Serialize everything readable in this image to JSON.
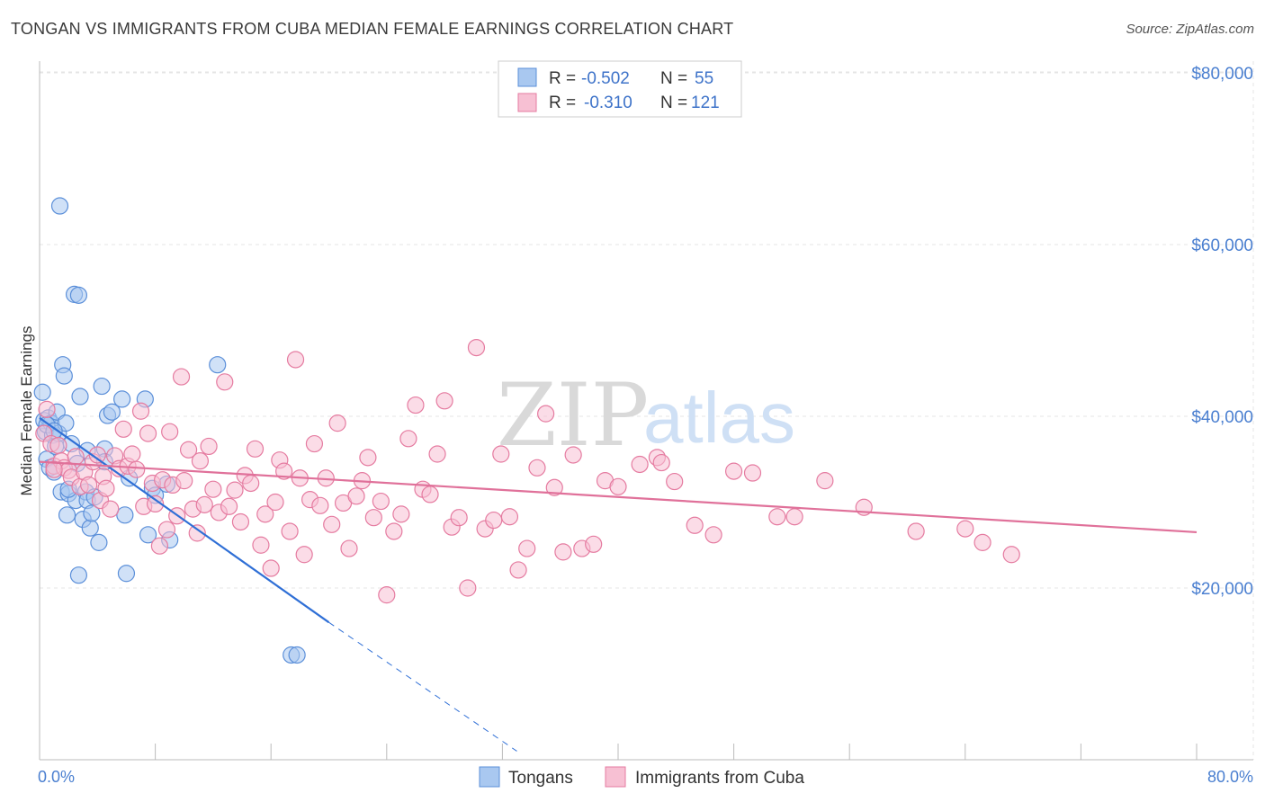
{
  "title": "TONGAN VS IMMIGRANTS FROM CUBA MEDIAN FEMALE EARNINGS CORRELATION CHART",
  "source": "Source: ZipAtlas.com",
  "watermark": {
    "zip": "ZIP",
    "atlas": "atlas"
  },
  "chart_data": {
    "type": "scatter",
    "title": "TONGAN VS IMMIGRANTS FROM CUBA MEDIAN FEMALE EARNINGS CORRELATION CHART",
    "xlabel": "",
    "ylabel": "Median Female Earnings",
    "xlim": [
      0,
      80
    ],
    "ylim": [
      0,
      82000
    ],
    "x_tick_labels": [
      "0.0%",
      "80.0%"
    ],
    "y_ticks": [
      20000,
      40000,
      60000,
      80000
    ],
    "y_tick_labels": [
      "$20,000",
      "$40,000",
      "$60,000",
      "$80,000"
    ],
    "grid": true,
    "legend_stats": [
      {
        "r_label": "R =",
        "r_value": "-0.502",
        "n_label": "N =",
        "n_value": "55"
      },
      {
        "r_label": "R =",
        "r_value": "-0.310",
        "n_label": "N =",
        "n_value": "121"
      }
    ],
    "series": [
      {
        "name": "Tongans",
        "color": "#5b8fd9",
        "fill": "#a9c8f0",
        "trend": {
          "x0": 0,
          "y0": 39800,
          "x1": 20,
          "y1": 16000,
          "dash_x1": 33,
          "dash_y1": 1000
        },
        "points": [
          [
            0.2,
            42800
          ],
          [
            0.3,
            39500
          ],
          [
            0.4,
            38200
          ],
          [
            0.5,
            35000
          ],
          [
            0.6,
            39800
          ],
          [
            0.7,
            34000
          ],
          [
            0.8,
            39200
          ],
          [
            0.9,
            37800
          ],
          [
            1.0,
            33500
          ],
          [
            1.1,
            36500
          ],
          [
            1.2,
            40500
          ],
          [
            1.3,
            38000
          ],
          [
            1.5,
            31200
          ],
          [
            1.6,
            46000
          ],
          [
            1.7,
            44700
          ],
          [
            1.8,
            39200
          ],
          [
            1.9,
            28500
          ],
          [
            2.0,
            31000
          ],
          [
            2.2,
            36800
          ],
          [
            2.4,
            54200
          ],
          [
            2.5,
            30200
          ],
          [
            2.6,
            34500
          ],
          [
            2.7,
            21500
          ],
          [
            2.8,
            42300
          ],
          [
            3.0,
            28000
          ],
          [
            3.2,
            31200
          ],
          [
            3.3,
            30200
          ],
          [
            3.5,
            27000
          ],
          [
            3.6,
            28700
          ],
          [
            3.8,
            30600
          ],
          [
            4.1,
            25300
          ],
          [
            4.3,
            43500
          ],
          [
            4.5,
            36200
          ],
          [
            4.7,
            40100
          ],
          [
            5.0,
            40500
          ],
          [
            5.7,
            42000
          ],
          [
            5.9,
            28500
          ],
          [
            6.0,
            21700
          ],
          [
            6.2,
            32800
          ],
          [
            7.3,
            42000
          ],
          [
            7.5,
            26200
          ],
          [
            7.8,
            31600
          ],
          [
            8.0,
            30800
          ],
          [
            8.8,
            32100
          ],
          [
            9.0,
            25600
          ],
          [
            12.3,
            46000
          ],
          [
            17.4,
            12200
          ],
          [
            17.8,
            12200
          ],
          [
            1.4,
            64500
          ],
          [
            2.7,
            54100
          ],
          [
            0.5,
            39000
          ],
          [
            1.0,
            38300
          ],
          [
            4.5,
            34700
          ],
          [
            2.0,
            31500
          ],
          [
            3.3,
            36000
          ]
        ]
      },
      {
        "name": "Immigrants from Cuba",
        "color": "#e57ba0",
        "fill": "#f7c0d3",
        "trend": {
          "x0": 0,
          "y0": 34700,
          "x1": 80,
          "y1": 26500
        },
        "points": [
          [
            0.3,
            38000
          ],
          [
            0.5,
            40800
          ],
          [
            0.8,
            36800
          ],
          [
            1.0,
            34200
          ],
          [
            1.3,
            36600
          ],
          [
            1.5,
            34800
          ],
          [
            1.7,
            34000
          ],
          [
            2.0,
            33700
          ],
          [
            2.2,
            32900
          ],
          [
            2.5,
            35300
          ],
          [
            2.8,
            31800
          ],
          [
            3.1,
            33500
          ],
          [
            3.4,
            32000
          ],
          [
            3.7,
            34700
          ],
          [
            4.0,
            35500
          ],
          [
            4.2,
            30200
          ],
          [
            4.4,
            33000
          ],
          [
            4.6,
            31600
          ],
          [
            4.9,
            29200
          ],
          [
            5.2,
            35400
          ],
          [
            5.5,
            33900
          ],
          [
            5.8,
            38500
          ],
          [
            6.1,
            34200
          ],
          [
            6.4,
            35600
          ],
          [
            6.7,
            33800
          ],
          [
            7.0,
            40600
          ],
          [
            7.2,
            29500
          ],
          [
            7.5,
            38000
          ],
          [
            7.8,
            32200
          ],
          [
            8.0,
            29800
          ],
          [
            8.3,
            24900
          ],
          [
            8.5,
            32600
          ],
          [
            8.8,
            26800
          ],
          [
            9.0,
            38200
          ],
          [
            9.2,
            32000
          ],
          [
            9.5,
            28400
          ],
          [
            9.8,
            44600
          ],
          [
            10.0,
            32500
          ],
          [
            10.3,
            36100
          ],
          [
            10.6,
            29200
          ],
          [
            10.9,
            26400
          ],
          [
            11.1,
            34800
          ],
          [
            11.4,
            29700
          ],
          [
            11.7,
            36500
          ],
          [
            12.0,
            31500
          ],
          [
            12.4,
            28800
          ],
          [
            12.8,
            44000
          ],
          [
            13.1,
            29500
          ],
          [
            13.5,
            31400
          ],
          [
            13.9,
            27700
          ],
          [
            14.2,
            33100
          ],
          [
            14.6,
            32200
          ],
          [
            14.9,
            36200
          ],
          [
            15.3,
            25000
          ],
          [
            15.6,
            28600
          ],
          [
            16.0,
            22300
          ],
          [
            16.3,
            30000
          ],
          [
            16.6,
            34900
          ],
          [
            16.9,
            33600
          ],
          [
            17.3,
            26600
          ],
          [
            17.7,
            46600
          ],
          [
            18.0,
            32800
          ],
          [
            18.3,
            23900
          ],
          [
            18.7,
            30300
          ],
          [
            19.0,
            36800
          ],
          [
            19.4,
            29600
          ],
          [
            19.8,
            32800
          ],
          [
            20.2,
            27400
          ],
          [
            20.6,
            39200
          ],
          [
            21.0,
            29900
          ],
          [
            21.4,
            24600
          ],
          [
            21.9,
            30700
          ],
          [
            22.3,
            32500
          ],
          [
            22.7,
            35200
          ],
          [
            23.1,
            28200
          ],
          [
            23.6,
            30100
          ],
          [
            24.0,
            19200
          ],
          [
            24.5,
            26600
          ],
          [
            25.0,
            28600
          ],
          [
            25.5,
            37400
          ],
          [
            26.0,
            41300
          ],
          [
            26.5,
            31500
          ],
          [
            27.0,
            30900
          ],
          [
            27.5,
            35600
          ],
          [
            28.0,
            41800
          ],
          [
            28.5,
            27100
          ],
          [
            29.0,
            28200
          ],
          [
            29.6,
            20000
          ],
          [
            30.2,
            48000
          ],
          [
            30.8,
            26900
          ],
          [
            31.4,
            27900
          ],
          [
            31.9,
            35600
          ],
          [
            32.5,
            28300
          ],
          [
            33.1,
            22100
          ],
          [
            33.7,
            24600
          ],
          [
            34.4,
            34000
          ],
          [
            35.0,
            40300
          ],
          [
            35.6,
            31700
          ],
          [
            36.2,
            24200
          ],
          [
            36.9,
            35500
          ],
          [
            37.5,
            24600
          ],
          [
            38.3,
            25100
          ],
          [
            39.1,
            32500
          ],
          [
            40.0,
            31800
          ],
          [
            41.5,
            34400
          ],
          [
            42.7,
            35200
          ],
          [
            43.9,
            32400
          ],
          [
            45.3,
            27300
          ],
          [
            46.6,
            26200
          ],
          [
            48.0,
            33600
          ],
          [
            49.3,
            33400
          ],
          [
            51.0,
            28300
          ],
          [
            52.2,
            28300
          ],
          [
            54.3,
            32500
          ],
          [
            57.0,
            29400
          ],
          [
            60.6,
            26600
          ],
          [
            64.0,
            26900
          ],
          [
            65.2,
            25300
          ],
          [
            67.2,
            23900
          ],
          [
            43.0,
            34600
          ],
          [
            1.0,
            33800
          ]
        ]
      }
    ]
  },
  "bottom_legend": [
    "Tongans",
    "Immigrants from Cuba"
  ]
}
